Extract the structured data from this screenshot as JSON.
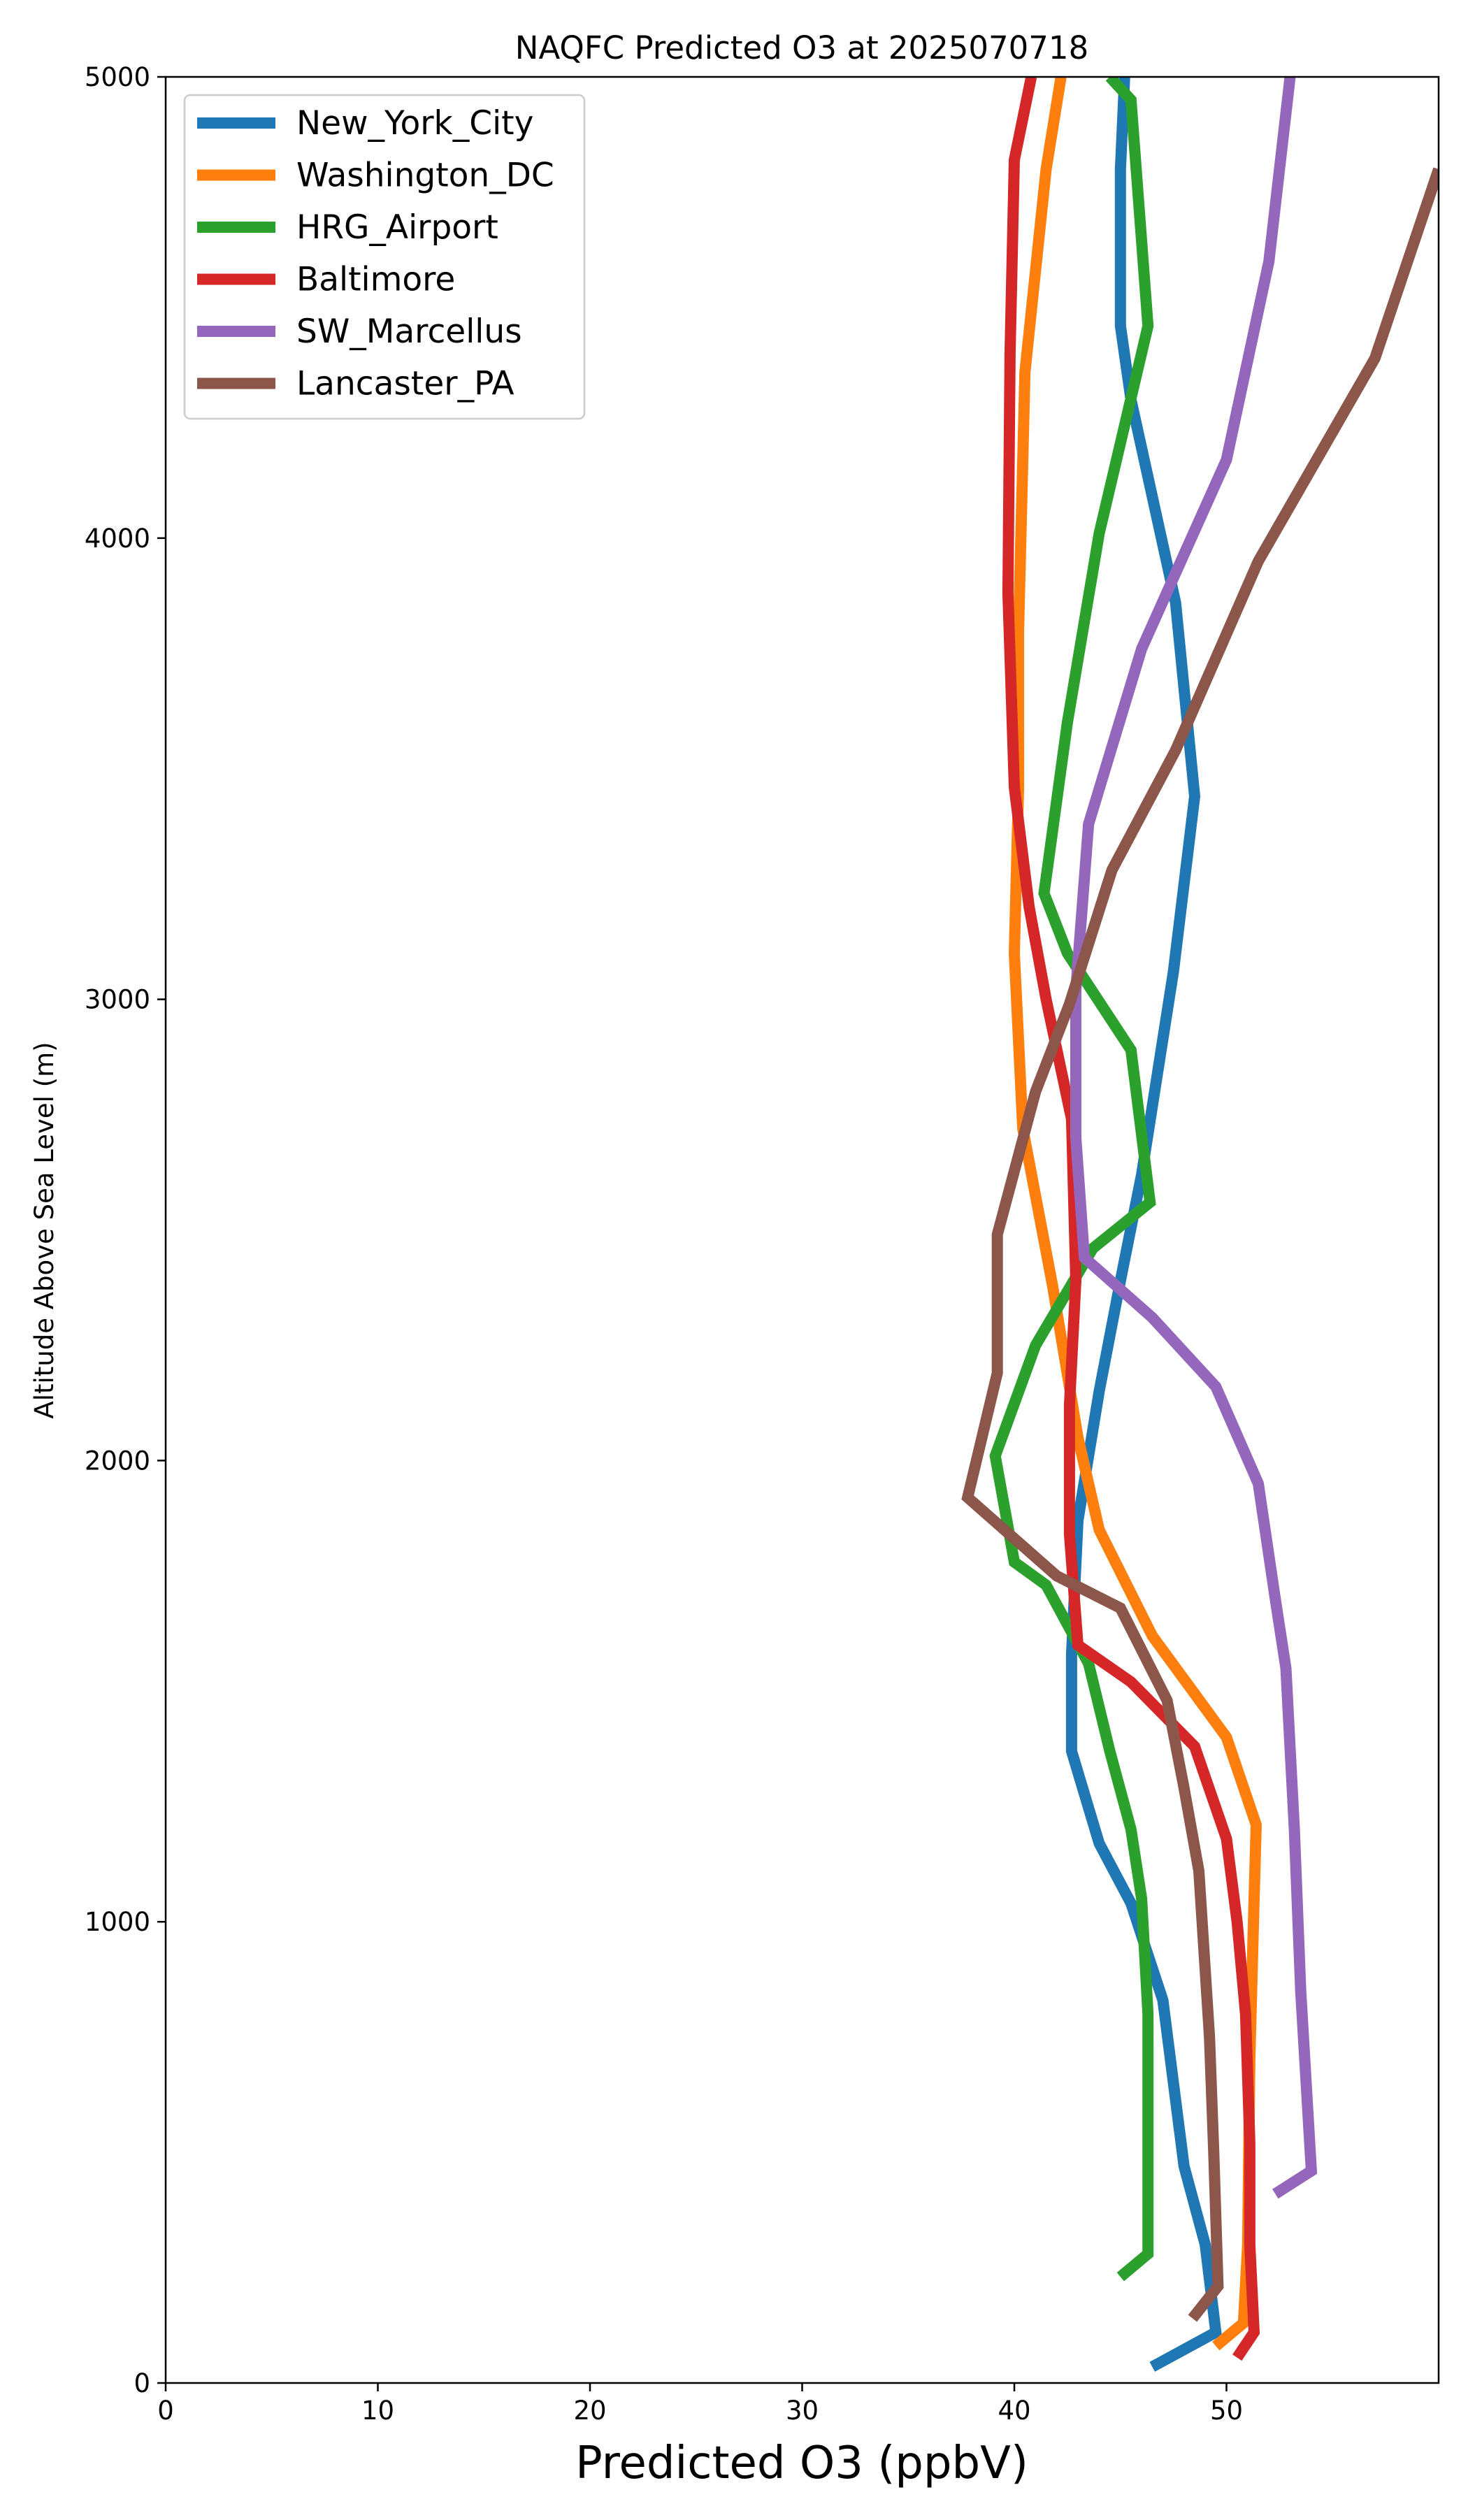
{
  "chart_data": {
    "type": "line",
    "title": "NAQFC Predicted O3 at 2025070718",
    "xlabel": "Predicted O3 (ppbV)",
    "ylabel": "Altitude Above Sea Level (m)",
    "xlim": [
      0,
      60
    ],
    "ylim": [
      0,
      5000
    ],
    "xticks": [
      0,
      10,
      20,
      30,
      40,
      50
    ],
    "yticks": [
      0,
      1000,
      2000,
      3000,
      4000,
      5000
    ],
    "grid": false,
    "legend_position": "upper-left",
    "series": [
      {
        "name": "New_York_City",
        "color": "#1f77b4",
        "points": [
          [
            46.5,
            35
          ],
          [
            49.5,
            110
          ],
          [
            49,
            300
          ],
          [
            48,
            470
          ],
          [
            47,
            830
          ],
          [
            45.5,
            1040
          ],
          [
            44,
            1170
          ],
          [
            42.7,
            1370
          ],
          [
            42.7,
            1580
          ],
          [
            43,
            1870
          ],
          [
            44,
            2150
          ],
          [
            45,
            2390
          ],
          [
            46,
            2620
          ],
          [
            47.5,
            3060
          ],
          [
            48.5,
            3440
          ],
          [
            47.6,
            3860
          ],
          [
            45.5,
            4300
          ],
          [
            45,
            4460
          ],
          [
            45,
            4800
          ],
          [
            45.2,
            5000
          ]
        ]
      },
      {
        "name": "Washington_DC",
        "color": "#ff7f0e",
        "points": [
          [
            49.5,
            80
          ],
          [
            50.8,
            130
          ],
          [
            51,
            300
          ],
          [
            51.1,
            700
          ],
          [
            51.3,
            1050
          ],
          [
            51.4,
            1210
          ],
          [
            50,
            1400
          ],
          [
            46.5,
            1620
          ],
          [
            44,
            1850
          ],
          [
            43,
            2050
          ],
          [
            41.8,
            2380
          ],
          [
            40.4,
            2720
          ],
          [
            40,
            3100
          ],
          [
            40.2,
            3460
          ],
          [
            40.2,
            3800
          ],
          [
            40.5,
            4360
          ],
          [
            41.5,
            4800
          ],
          [
            42.2,
            5000
          ]
        ]
      },
      {
        "name": "HRG_Airport",
        "color": "#2ca02c",
        "points": [
          [
            45,
            230
          ],
          [
            46.3,
            280
          ],
          [
            46.3,
            800
          ],
          [
            46,
            1050
          ],
          [
            45.5,
            1200
          ],
          [
            44.5,
            1370
          ],
          [
            43.5,
            1560
          ],
          [
            41.5,
            1730
          ],
          [
            40,
            1780
          ],
          [
            39.1,
            2010
          ],
          [
            41,
            2250
          ],
          [
            43.7,
            2460
          ],
          [
            46.4,
            2560
          ],
          [
            45.5,
            2890
          ],
          [
            42.5,
            3100
          ],
          [
            41.4,
            3230
          ],
          [
            42.5,
            3600
          ],
          [
            44,
            4010
          ],
          [
            46.3,
            4460
          ],
          [
            45.5,
            4950
          ],
          [
            44.5,
            5000
          ]
        ]
      },
      {
        "name": "Baltimore",
        "color": "#d62728",
        "points": [
          [
            50.5,
            55
          ],
          [
            51.3,
            110
          ],
          [
            51.1,
            300
          ],
          [
            51.1,
            520
          ],
          [
            50.9,
            800
          ],
          [
            50.5,
            1000
          ],
          [
            50,
            1180
          ],
          [
            48.5,
            1380
          ],
          [
            45.5,
            1520
          ],
          [
            43,
            1600
          ],
          [
            42.6,
            1840
          ],
          [
            42.6,
            2120
          ],
          [
            42.9,
            2390
          ],
          [
            42.7,
            2740
          ],
          [
            41.5,
            3000
          ],
          [
            40.7,
            3200
          ],
          [
            40,
            3460
          ],
          [
            39.7,
            3880
          ],
          [
            39.8,
            4400
          ],
          [
            40,
            4820
          ],
          [
            40.8,
            5000
          ]
        ]
      },
      {
        "name": "SW_Marcellus",
        "color": "#9467bd",
        "points": [
          [
            52.3,
            410
          ],
          [
            54,
            460
          ],
          [
            53.5,
            850
          ],
          [
            53.2,
            1200
          ],
          [
            52.8,
            1550
          ],
          [
            52.3,
            1700
          ],
          [
            51.5,
            1950
          ],
          [
            49.5,
            2160
          ],
          [
            46.5,
            2310
          ],
          [
            43.3,
            2440
          ],
          [
            42.9,
            2700
          ],
          [
            42.9,
            3020
          ],
          [
            43.5,
            3380
          ],
          [
            46,
            3760
          ],
          [
            50,
            4170
          ],
          [
            52,
            4600
          ],
          [
            53,
            5000
          ]
        ]
      },
      {
        "name": "Lancaster_PA",
        "color": "#8c564b",
        "points": [
          [
            48.4,
            140
          ],
          [
            49.6,
            210
          ],
          [
            49.4,
            500
          ],
          [
            49.2,
            750
          ],
          [
            48.7,
            1110
          ],
          [
            48,
            1290
          ],
          [
            47.2,
            1480
          ],
          [
            45,
            1680
          ],
          [
            42,
            1750
          ],
          [
            37.8,
            1920
          ],
          [
            39.2,
            2190
          ],
          [
            39.2,
            2490
          ],
          [
            41,
            2800
          ],
          [
            42.6,
            2990
          ],
          [
            44.6,
            3280
          ],
          [
            47.6,
            3540
          ],
          [
            51.5,
            3950
          ],
          [
            57,
            4390
          ],
          [
            60,
            4800
          ]
        ]
      }
    ]
  }
}
